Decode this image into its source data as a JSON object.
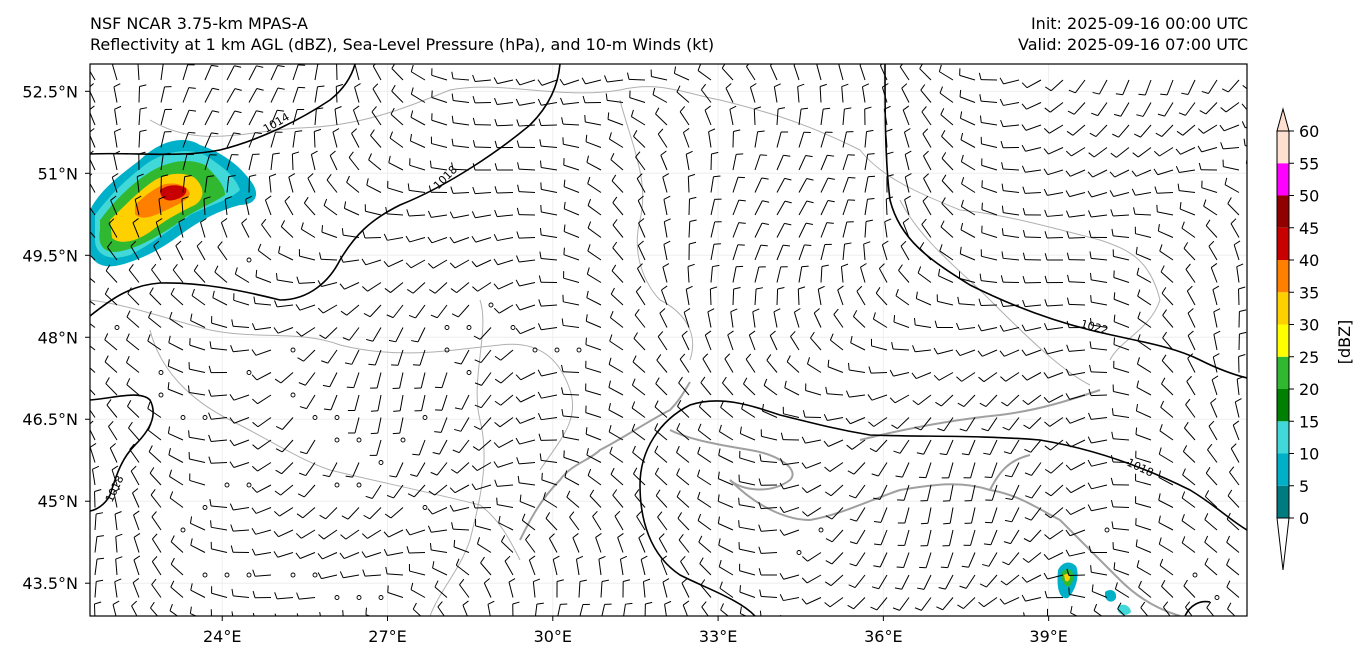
{
  "header": {
    "model": "NSF NCAR 3.75-km MPAS-A",
    "fields": "Reflectivity at 1 km AGL (dBZ), Sea-Level Pressure (hPa), and 10-m Winds (kt)",
    "init": "Init: 2025-09-16 00:00 UTC",
    "valid": "Valid: 2025-09-16 07:00 UTC"
  },
  "map": {
    "lon_range": [
      21.6,
      42.6
    ],
    "lat_range": [
      42.9,
      53.0
    ],
    "lat_ticks": [
      {
        "value": 52.5,
        "label": "52.5°N"
      },
      {
        "value": 51.0,
        "label": "51°N"
      },
      {
        "value": 49.5,
        "label": "49.5°N"
      },
      {
        "value": 48.0,
        "label": "48°N"
      },
      {
        "value": 46.5,
        "label": "46.5°N"
      },
      {
        "value": 45.0,
        "label": "45°N"
      },
      {
        "value": 43.5,
        "label": "43.5°N"
      }
    ],
    "lon_ticks": [
      {
        "value": 24,
        "label": "24°E"
      },
      {
        "value": 27,
        "label": "27°E"
      },
      {
        "value": 30,
        "label": "30°E"
      },
      {
        "value": 33,
        "label": "33°E"
      },
      {
        "value": 36,
        "label": "36°E"
      },
      {
        "value": 39,
        "label": "39°E"
      }
    ],
    "pressure_contour_labels": [
      "1014",
      "1018",
      "1022",
      "1018",
      "1018"
    ]
  },
  "colorbar": {
    "label": "[dBZ]",
    "levels": [
      "0",
      "5",
      "10",
      "15",
      "20",
      "25",
      "30",
      "35",
      "40",
      "45",
      "50",
      "55",
      "60"
    ],
    "colors": [
      "#007c80",
      "#00b0c8",
      "#40d8d8",
      "#008000",
      "#30b830",
      "#ffff00",
      "#ffd000",
      "#ff8000",
      "#c80000",
      "#900000",
      "#ff00ff",
      "#ffe0d0"
    ]
  }
}
